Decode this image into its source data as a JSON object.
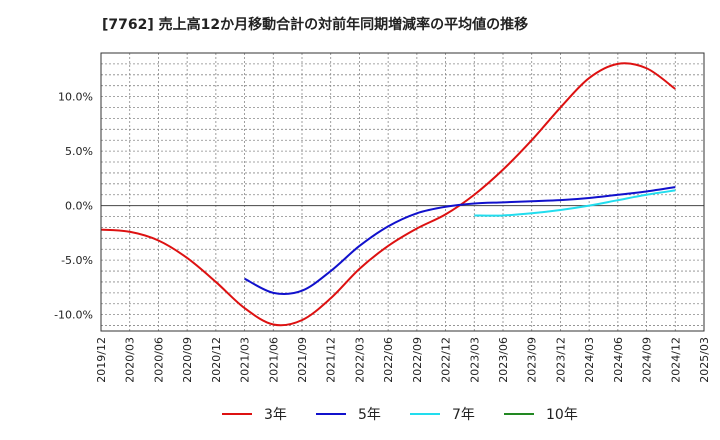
{
  "chart_data": {
    "type": "line",
    "title": "[7762]  売上高12か月移動合計の対前年同期増減率の平均値の推移",
    "xlabel": "",
    "ylabel": "",
    "ylim": [
      -11.5,
      14.0
    ],
    "grid": true,
    "legend_position": "bottom",
    "y_ticks": [
      -10,
      -5,
      0,
      5,
      10
    ],
    "y_tick_labels": [
      "-10.0%",
      "-5.0%",
      "0.0%",
      "5.0%",
      "10.0%"
    ],
    "x_tick_labels": [
      "2019/12",
      "2020/03",
      "2020/06",
      "2020/09",
      "2020/12",
      "2021/03",
      "2021/06",
      "2021/09",
      "2021/12",
      "2022/03",
      "2022/06",
      "2022/09",
      "2022/12",
      "2023/03",
      "2023/06",
      "2023/09",
      "2023/12",
      "2024/03",
      "2024/06",
      "2024/09",
      "2024/12",
      "2025/03"
    ],
    "series": [
      {
        "name": "3年",
        "color": "#dd1111",
        "x": [
          "2019/12",
          "2020/03",
          "2020/06",
          "2020/09",
          "2020/12",
          "2021/03",
          "2021/06",
          "2021/09",
          "2021/12",
          "2022/03",
          "2022/06",
          "2022/09",
          "2022/12",
          "2023/03",
          "2023/06",
          "2023/09",
          "2023/12",
          "2024/03",
          "2024/06",
          "2024/09",
          "2024/12"
        ],
        "values": [
          -2.2,
          -2.4,
          -3.2,
          -4.8,
          -7.0,
          -9.4,
          -10.9,
          -10.5,
          -8.5,
          -5.8,
          -3.7,
          -2.1,
          -0.8,
          1.0,
          3.3,
          6.0,
          9.0,
          11.7,
          13.0,
          12.6,
          10.7
        ]
      },
      {
        "name": "5年",
        "color": "#1111cc",
        "x": [
          "2021/03",
          "2021/06",
          "2021/09",
          "2021/12",
          "2022/03",
          "2022/06",
          "2022/09",
          "2022/12",
          "2023/03",
          "2023/06",
          "2023/09",
          "2023/12",
          "2024/03",
          "2024/06",
          "2024/09",
          "2024/12"
        ],
        "values": [
          -6.7,
          -8.0,
          -7.8,
          -6.0,
          -3.7,
          -1.9,
          -0.7,
          -0.1,
          0.2,
          0.3,
          0.4,
          0.5,
          0.7,
          1.0,
          1.3,
          1.7
        ]
      },
      {
        "name": "7年",
        "color": "#22ddee",
        "x": [
          "2023/03",
          "2023/06",
          "2023/09",
          "2023/12",
          "2024/03",
          "2024/06",
          "2024/09",
          "2024/12"
        ],
        "values": [
          -0.9,
          -0.9,
          -0.7,
          -0.4,
          0.0,
          0.5,
          1.0,
          1.4
        ]
      },
      {
        "name": "10年",
        "color": "#228822",
        "x": [],
        "values": []
      }
    ]
  }
}
